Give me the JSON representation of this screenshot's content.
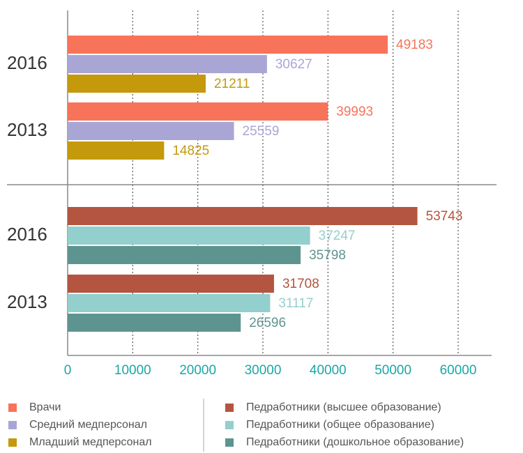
{
  "chart_data": {
    "type": "bar",
    "orientation": "horizontal",
    "categories": [
      "2016",
      "2013",
      "2016",
      "2013"
    ],
    "series": [
      {
        "name": "Врачи",
        "color": "#f7735a",
        "values": [
          49183,
          39993,
          null,
          null
        ]
      },
      {
        "name": "Средний медперсонал",
        "color": "#a9a6d6",
        "values": [
          30627,
          25559,
          null,
          null
        ]
      },
      {
        "name": "Младший медперсонал",
        "color": "#c49a0c",
        "values": [
          21211,
          14825,
          null,
          null
        ]
      },
      {
        "name": "Педработники (высшее образование)",
        "color": "#b35540",
        "values": [
          null,
          null,
          53743,
          31708
        ]
      },
      {
        "name": "Педработники (общее образование)",
        "color": "#93cfcc",
        "values": [
          null,
          null,
          37247,
          31117
        ]
      },
      {
        "name": "Педработники (дошкольное образование)",
        "color": "#5e948f",
        "values": [
          null,
          null,
          35798,
          26596
        ]
      }
    ],
    "xlim": [
      0,
      65000
    ],
    "xticks": [
      0,
      10000,
      20000,
      30000,
      40000,
      50000,
      60000
    ],
    "grid": true
  }
}
